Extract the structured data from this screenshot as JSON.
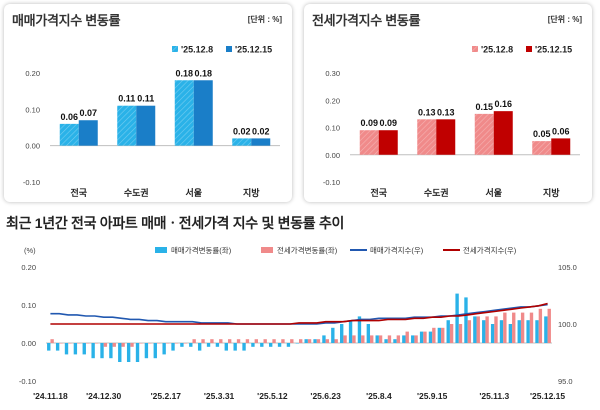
{
  "colors": {
    "sale_light": "#2ab2e8",
    "sale_dark": "#1a7ec8",
    "jeonse_light": "#f08a8a",
    "jeonse_dark": "#c00000",
    "sale_index_line": "#2158b0",
    "jeonse_index_line": "#b00000"
  },
  "sale_panel": {
    "title": "매매가격지수 변동률",
    "unit": "[단위 : %]"
  },
  "jeonse_panel": {
    "title": "전세가격지수 변동률",
    "unit": "[단위 : %]"
  },
  "bottom_panel": {
    "title": "최근 1년간 전국 아파트 매매ㆍ전세가격 지수 및 변동률 추이",
    "left_axis_unit": "(%)"
  },
  "chart_data": [
    {
      "type": "bar",
      "title": "매매가격지수 변동률",
      "categories": [
        "전국",
        "수도권",
        "서울",
        "지방"
      ],
      "series": [
        {
          "name": "'25.12.8",
          "values": [
            0.06,
            0.11,
            0.18,
            0.02
          ],
          "labels": [
            "0.06",
            "0.11",
            "0.18",
            "0.02"
          ]
        },
        {
          "name": "'25.12.15",
          "values": [
            0.07,
            0.11,
            0.18,
            0.02
          ],
          "labels": [
            "0.07",
            "0.11",
            "0.18",
            "0.02"
          ]
        }
      ],
      "ylim": [
        -0.1,
        0.2
      ],
      "yticks": [
        "0.20",
        "0.10",
        "0.00",
        "-0.10"
      ],
      "yticks_values": [
        0.2,
        0.1,
        0.0,
        -0.1
      ],
      "legend": "top-right"
    },
    {
      "type": "bar",
      "title": "전세가격지수 변동률",
      "categories": [
        "전국",
        "수도권",
        "서울",
        "지방"
      ],
      "series": [
        {
          "name": "'25.12.8",
          "values": [
            0.09,
            0.13,
            0.15,
            0.05
          ],
          "labels": [
            "0.09",
            "0.13",
            "0.15",
            "0.05"
          ]
        },
        {
          "name": "'25.12.15",
          "values": [
            0.09,
            0.13,
            0.16,
            0.06
          ],
          "labels": [
            "0.09",
            "0.13",
            "0.16",
            "0.06"
          ]
        }
      ],
      "ylim": [
        -0.1,
        0.3
      ],
      "yticks": [
        "0.30",
        "0.20",
        "0.10",
        "0.00",
        "-0.10"
      ],
      "yticks_values": [
        0.3,
        0.2,
        0.1,
        0.0,
        -0.1
      ],
      "legend": "top-right"
    },
    {
      "type": "bar",
      "title": "최근 1년간 전국 아파트 매매ㆍ전세가격 지수 및 변동률 추이",
      "legend": "top",
      "left_ylim": [
        -0.1,
        0.2
      ],
      "left_yticks": [
        "0.20",
        "0.10",
        "0.00",
        "-0.10"
      ],
      "left_yticks_values": [
        0.2,
        0.1,
        0.0,
        -0.1
      ],
      "right_ylim": [
        95.0,
        105.0
      ],
      "right_yticks": [
        "105.0",
        "100.0",
        "95.0"
      ],
      "right_yticks_values": [
        105.0,
        100.0,
        95.0
      ],
      "x_ticks": [
        "'24.11.18",
        "'24.12.30",
        "'25.2.17",
        "'25.3.31",
        "'25.5.12",
        "'25.6.23",
        "'25.8.4",
        "'25.9.15",
        "'25.11.3",
        "'25.12.15"
      ],
      "x_tick_week_index": [
        0,
        6,
        13,
        19,
        25,
        31,
        37,
        43,
        50,
        56
      ],
      "series": [
        {
          "name": "매매가격변동률(좌)",
          "type": "bar",
          "axis": "left",
          "values": [
            -0.02,
            -0.02,
            -0.03,
            -0.03,
            -0.03,
            -0.04,
            -0.04,
            -0.04,
            -0.05,
            -0.05,
            -0.05,
            -0.04,
            -0.04,
            -0.03,
            -0.02,
            -0.01,
            -0.01,
            -0.02,
            -0.01,
            -0.01,
            -0.02,
            -0.02,
            -0.02,
            -0.01,
            -0.01,
            -0.01,
            -0.01,
            -0.01,
            0.0,
            0.01,
            0.01,
            0.02,
            0.04,
            0.05,
            0.06,
            0.07,
            0.05,
            0.02,
            0.01,
            0.01,
            0.02,
            0.02,
            0.03,
            0.03,
            0.04,
            0.06,
            0.13,
            0.12,
            0.07,
            0.06,
            0.05,
            0.06,
            0.05,
            0.06,
            0.06,
            0.06,
            0.07
          ]
        },
        {
          "name": "전세가격변동률(좌)",
          "type": "bar",
          "axis": "left",
          "values": [
            0.01,
            0.0,
            0.0,
            0.0,
            0.0,
            0.0,
            -0.01,
            -0.01,
            -0.01,
            -0.01,
            0.0,
            0.0,
            0.0,
            0.0,
            0.0,
            0.0,
            0.01,
            0.01,
            0.01,
            0.01,
            0.01,
            0.01,
            0.01,
            0.01,
            0.01,
            0.01,
            0.01,
            0.01,
            0.01,
            0.01,
            0.01,
            0.01,
            0.01,
            0.02,
            0.02,
            0.02,
            0.02,
            0.02,
            0.02,
            0.02,
            0.03,
            0.02,
            0.03,
            0.04,
            0.04,
            0.05,
            0.05,
            0.06,
            0.07,
            0.07,
            0.07,
            0.08,
            0.08,
            0.08,
            0.08,
            0.09,
            0.09
          ]
        },
        {
          "name": "매매가격지수(우)",
          "type": "line",
          "axis": "right",
          "values": [
            100.9,
            100.9,
            100.8,
            100.8,
            100.7,
            100.7,
            100.6,
            100.6,
            100.5,
            100.4,
            100.4,
            100.3,
            100.3,
            100.2,
            100.2,
            100.2,
            100.2,
            100.1,
            100.1,
            100.1,
            100.1,
            100.0,
            100.0,
            100.0,
            100.0,
            100.0,
            100.0,
            100.0,
            100.0,
            100.0,
            100.0,
            100.1,
            100.1,
            100.2,
            100.3,
            100.4,
            100.4,
            100.5,
            100.5,
            100.5,
            100.5,
            100.6,
            100.6,
            100.6,
            100.7,
            100.7,
            100.8,
            100.9,
            101.0,
            101.1,
            101.2,
            101.3,
            101.4,
            101.5,
            101.5,
            101.6,
            101.7
          ]
        },
        {
          "name": "전세가격지수(우)",
          "type": "line",
          "axis": "right",
          "values": [
            100.0,
            100.0,
            100.0,
            100.0,
            100.0,
            100.0,
            100.0,
            100.0,
            100.0,
            100.0,
            100.0,
            100.0,
            100.0,
            100.0,
            100.0,
            100.0,
            100.0,
            100.0,
            100.0,
            100.0,
            100.0,
            100.0,
            100.0,
            100.0,
            100.0,
            100.0,
            100.0,
            100.0,
            100.1,
            100.1,
            100.1,
            100.2,
            100.2,
            100.2,
            100.3,
            100.3,
            100.3,
            100.3,
            100.4,
            100.4,
            100.4,
            100.5,
            100.5,
            100.6,
            100.6,
            100.7,
            100.7,
            100.8,
            100.9,
            101.0,
            101.1,
            101.2,
            101.3,
            101.4,
            101.5,
            101.6,
            101.8
          ]
        }
      ]
    }
  ]
}
